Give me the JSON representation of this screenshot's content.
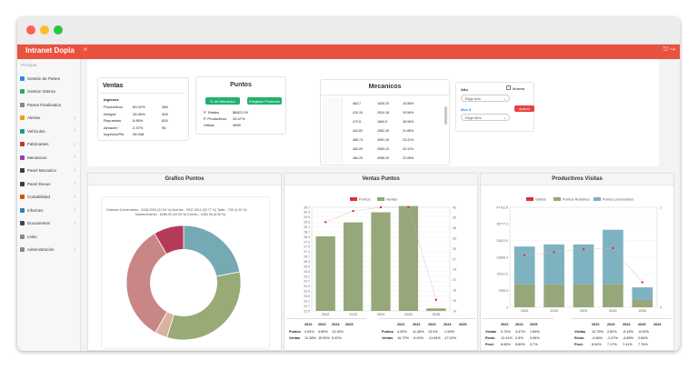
{
  "app": {
    "brand": "Intranet Dopla",
    "menu_icon": "«",
    "logout_icon": "⎋ ↪"
  },
  "sidebar": {
    "section": "Principal",
    "items": [
      {
        "label": "Gestión de Partes",
        "icon": "clipboard-icon",
        "color": "#2e86de",
        "chev": false
      },
      {
        "label": "Gestion Interna",
        "icon": "briefcase-icon",
        "color": "#27ae60",
        "chev": false
      },
      {
        "label": "Partes Finalizados",
        "icon": "check-list-icon",
        "color": "#7f8c8d",
        "chev": false
      },
      {
        "label": "Alertas",
        "icon": "bell-icon",
        "color": "#f39c12",
        "chev": true
      },
      {
        "label": "Vehículos",
        "icon": "car-icon",
        "color": "#16a085",
        "chev": true
      },
      {
        "label": "Fabricantes",
        "icon": "factory-icon",
        "color": "#c0392b",
        "chev": true
      },
      {
        "label": "Mecanicos",
        "icon": "wrench-icon",
        "color": "#8e44ad",
        "chev": true
      },
      {
        "label": "Panel Mecanico",
        "icon": "dashboard-icon",
        "color": "#2c3e50",
        "chev": true
      },
      {
        "label": "Panel Dexus",
        "icon": "dashboard-icon",
        "color": "#2c3e50",
        "chev": true
      },
      {
        "label": "Contabilidad",
        "icon": "calculator-icon",
        "color": "#d35400",
        "chev": true
      },
      {
        "label": "Informes",
        "icon": "report-icon",
        "color": "#2980b9",
        "chev": true
      },
      {
        "label": "Documentos",
        "icon": "document-icon",
        "color": "#34495e",
        "chev": true
      },
      {
        "label": "Links",
        "icon": "link-icon",
        "color": "#7f8c8d",
        "chev": false
      },
      {
        "label": "Administración",
        "icon": "gears-icon",
        "color": "#7f8c8d",
        "chev": true
      }
    ]
  },
  "ventas": {
    "title": "Ventas",
    "head": "Ingresos",
    "rows": [
      {
        "l": "Productivos",
        "p": "60.02%",
        "n": "386"
      },
      {
        "l": "Integral",
        "p": "24.06%",
        "n": "326"
      },
      {
        "l": "Repuestos",
        "p": "8.85%",
        "n": "826"
      },
      {
        "l": "Almacen",
        "p": "2.37%",
        "n": "96"
      },
      {
        "l": "Ingresos/Pts",
        "p": "28.348",
        "n": ""
      }
    ]
  },
  "puntos": {
    "title": "Puntos",
    "btn1": "S. de Mecanico",
    "btn2": "Eregistar Proximos",
    "rows": [
      {
        "l": "P. Totales",
        "v": "$6822.09"
      },
      {
        "l": "P. Productivos",
        "v": "25.47%"
      },
      {
        "l": "Visitas",
        "v": "3899"
      }
    ]
  },
  "mecanicos": {
    "title": "Mecanicos",
    "rows": [
      [
        "463.7",
        "1635.20",
        "15.56%"
      ],
      [
        "410.15",
        "2924.18",
        "19.56%"
      ],
      [
        "472.5",
        "1664.9",
        "28.06%"
      ],
      [
        "443.82",
        "1962.49",
        "21.66%"
      ],
      [
        "465.74",
        "4951.16",
        "23.41%"
      ],
      [
        "484.29",
        "4983.10",
        "20.11%"
      ],
      [
        "484.29",
        "4958.20",
        "23.06%"
      ]
    ]
  },
  "filtros": {
    "anio_label": "Año",
    "mostrar_label": "Mostrar",
    "mes_label": "Mes 5",
    "anio_value": "Elige Año",
    "mes_value": "Elige Mes",
    "apply_label": "Aplicar"
  },
  "panels": {
    "grafico": "Grafico Puntos",
    "ventas": "Ventas Puntos",
    "productivos": "Productivos Visitas"
  },
  "donut": {
    "legend1": "Ordenes Comerciales - 4108.2000 (21.94 %)   Averías - 9037.4014 (32.77 %)   Taller - 730 (3.49 %)",
    "legend2": "Mantenimiento - 6385.09 (33.30 %)   Evento - 1650.38 (8.50 %)",
    "slices": [
      {
        "label": "Ordenes Comerciales",
        "value": 21.94,
        "color": "#75a9b4"
      },
      {
        "label": "Averías",
        "value": 32.77,
        "color": "#98ab76"
      },
      {
        "label": "Taller",
        "value": 3.49,
        "color": "#d8b4a0"
      },
      {
        "label": "Mantenimiento",
        "value": 33.3,
        "color": "#c98686"
      },
      {
        "label": "Evento",
        "value": 8.5,
        "color": "#b43a57"
      }
    ]
  },
  "chart_data": [
    {
      "type": "bar",
      "title": "Ventas Puntos",
      "categories": [
        "2022",
        "2023",
        "2024",
        "2026",
        "2026"
      ],
      "series": [
        {
          "name": "Ventas",
          "type": "bar",
          "values": [
            28.4,
            29.5,
            30.3,
            30.8,
            22.7
          ],
          "color": "#96a87a"
        },
        {
          "name": "Puntos",
          "type": "line",
          "values": [
            38,
            41,
            42,
            42,
            17
          ],
          "color": "#e0303a"
        }
      ],
      "ylim_left": [
        22.5,
        30.7
      ],
      "ylim_right": [
        14,
        42
      ],
      "yticks_left": [
        "30.7",
        "30.3",
        "29.9",
        "29.5",
        "29.1",
        "28.7",
        "28.3",
        "27.9",
        "27.5",
        "27.1",
        "26.7",
        "26.3",
        "25.9",
        "25.5",
        "25.1",
        "24.7",
        "24.3",
        "23.9",
        "23.5",
        "23.1",
        "22.7",
        "22.5"
      ],
      "yticks_right": [
        "42",
        "39",
        "36",
        "33",
        "30",
        "27",
        "24",
        "21",
        "18",
        "15",
        "14"
      ]
    },
    {
      "type": "bar",
      "title": "Productivos Visitas",
      "stacked": true,
      "categories": [
        "2022",
        "2023",
        "2024",
        "2026",
        "2026"
      ],
      "series": [
        {
          "name": "Puntos Rotantes",
          "type": "bar",
          "values": [
            11000,
            11000,
            11000,
            11000,
            3500
          ],
          "color": "#96a87a"
        },
        {
          "name": "Puntos productivos",
          "type": "bar",
          "values": [
            18000,
            19000,
            19000,
            26000,
            6000
          ],
          "color": "#7fb2c1"
        },
        {
          "name": "Visitas",
          "type": "line",
          "values": [
            0.52,
            0.55,
            0.58,
            0.59,
            0.25
          ],
          "color": "#e0303a"
        }
      ],
      "ylim": [
        0,
        47732.8
      ],
      "yticks": [
        "47732.8",
        "39777.3",
        "31821.9",
        "23866.4",
        "15911.0",
        "7955.5",
        "0"
      ],
      "yticks_right": [
        "1",
        "0"
      ]
    }
  ],
  "tabla_ventas": {
    "header": [
      "2022",
      "2023",
      "2024",
      "2025"
    ],
    "rows": [
      {
        "l": "Puntos",
        "v": [
          "4.54%",
          "4.89%",
          "13.16%",
          ""
        ]
      },
      {
        "l": "Ventas",
        "v": [
          "12.38%",
          "15.55%",
          "5.42%",
          ""
        ]
      }
    ]
  },
  "tabla_puntos": {
    "header": [
      "2021",
      "2022",
      "2023",
      "2024",
      "2025"
    ],
    "rows": [
      {
        "l": "Puntos",
        "v": [
          "4.00%",
          "11.36%",
          "13.9%",
          "-1.90%",
          ""
        ]
      },
      {
        "l": "Ventas",
        "v": [
          "16.72%",
          "-5.92%",
          "-11.84%",
          "-17.02%",
          ""
        ]
      }
    ]
  },
  "tabla_visitas": {
    "header": [
      "2022",
      "2024",
      "2025"
    ],
    "rows": [
      {
        "l": "Visitas",
        "v": [
          "9.74%",
          "3.47%",
          "1.89%"
        ]
      },
      {
        "l": "Resto",
        "v": [
          "12.41%",
          "2.5%",
          "9.96%"
        ]
      },
      {
        "l": "Prod.",
        "v": [
          "8.65%",
          "8.80%",
          "3.7%"
        ]
      }
    ]
  },
  "tabla_visitas2": {
    "header": [
      "2022",
      "2023",
      "2024",
      "2025",
      "2026"
    ],
    "rows": [
      {
        "l": "Visitas",
        "v": [
          "10.75%",
          "2.82%",
          "-5.18%",
          "-5.92%",
          ""
        ]
      },
      {
        "l": "Resto",
        "v": [
          "-4.66%",
          "-2.67%",
          "-4.88%",
          "2.84%",
          ""
        ]
      },
      {
        "l": "Prod.",
        "v": [
          "8.00%",
          "7.17%",
          "7.41%",
          "7.76%",
          ""
        ]
      }
    ]
  }
}
